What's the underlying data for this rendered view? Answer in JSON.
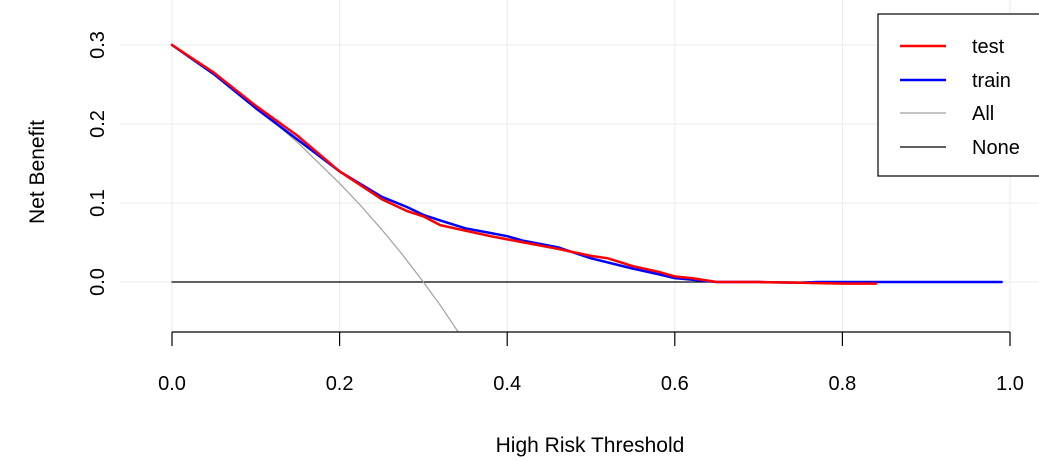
{
  "chart_data": {
    "type": "line",
    "title": "",
    "xlabel": "High Risk Threshold",
    "ylabel": "Net Benefit",
    "xlim": [
      0.0,
      1.0
    ],
    "ylim": [
      -0.06,
      0.33
    ],
    "grid": true,
    "xticks": [
      0.0,
      0.2,
      0.4,
      0.6,
      0.8,
      1.0
    ],
    "xtick_labels": [
      "0.0",
      "0.2",
      "0.4",
      "0.6",
      "0.8",
      "1.0"
    ],
    "yticks": [
      0.0,
      0.1,
      0.2,
      0.3
    ],
    "ytick_labels": [
      "0.0",
      "0.1",
      "0.2",
      "0.3"
    ],
    "legend_position": "top-right",
    "series": [
      {
        "name": "test",
        "color": "#ff0000",
        "width": 2.5,
        "x": [
          0.0,
          0.05,
          0.1,
          0.15,
          0.2,
          0.25,
          0.28,
          0.3,
          0.32,
          0.35,
          0.38,
          0.42,
          0.46,
          0.5,
          0.52,
          0.55,
          0.58,
          0.6,
          0.62,
          0.65,
          0.7,
          0.75,
          0.8,
          0.84
        ],
        "y": [
          0.3,
          0.265,
          0.223,
          0.185,
          0.14,
          0.105,
          0.09,
          0.083,
          0.072,
          0.065,
          0.058,
          0.05,
          0.042,
          0.033,
          0.03,
          0.02,
          0.013,
          0.007,
          0.005,
          0.0,
          0.0,
          -0.001,
          -0.002,
          -0.002
        ]
      },
      {
        "name": "train",
        "color": "#0000ff",
        "width": 2.5,
        "x": [
          0.0,
          0.05,
          0.1,
          0.15,
          0.2,
          0.25,
          0.28,
          0.3,
          0.32,
          0.35,
          0.38,
          0.4,
          0.42,
          0.46,
          0.5,
          0.55,
          0.58,
          0.6,
          0.62,
          0.65,
          0.7,
          0.75,
          0.77,
          0.8,
          0.85,
          0.9,
          0.95,
          0.99
        ],
        "y": [
          0.3,
          0.263,
          0.22,
          0.18,
          0.14,
          0.108,
          0.095,
          0.085,
          0.078,
          0.068,
          0.062,
          0.058,
          0.052,
          0.044,
          0.03,
          0.017,
          0.01,
          0.005,
          0.003,
          0.0,
          0.0,
          -0.001,
          0.0,
          0.0,
          0.0,
          0.0,
          0.0,
          0.0
        ]
      },
      {
        "name": "All",
        "color": "#a0a0a0",
        "width": 1.2,
        "x": [
          0.0,
          0.05,
          0.1,
          0.15,
          0.2,
          0.225,
          0.25,
          0.275,
          0.3,
          0.32,
          0.345
        ],
        "y": [
          0.3,
          0.2632,
          0.2222,
          0.1765,
          0.125,
          0.0968,
          0.0667,
          0.0345,
          0.0,
          -0.0294,
          -0.0687
        ]
      },
      {
        "name": "None",
        "color": "#000000",
        "width": 1.2,
        "x": [
          0.0,
          0.99
        ],
        "y": [
          0.0,
          0.0
        ]
      }
    ]
  }
}
